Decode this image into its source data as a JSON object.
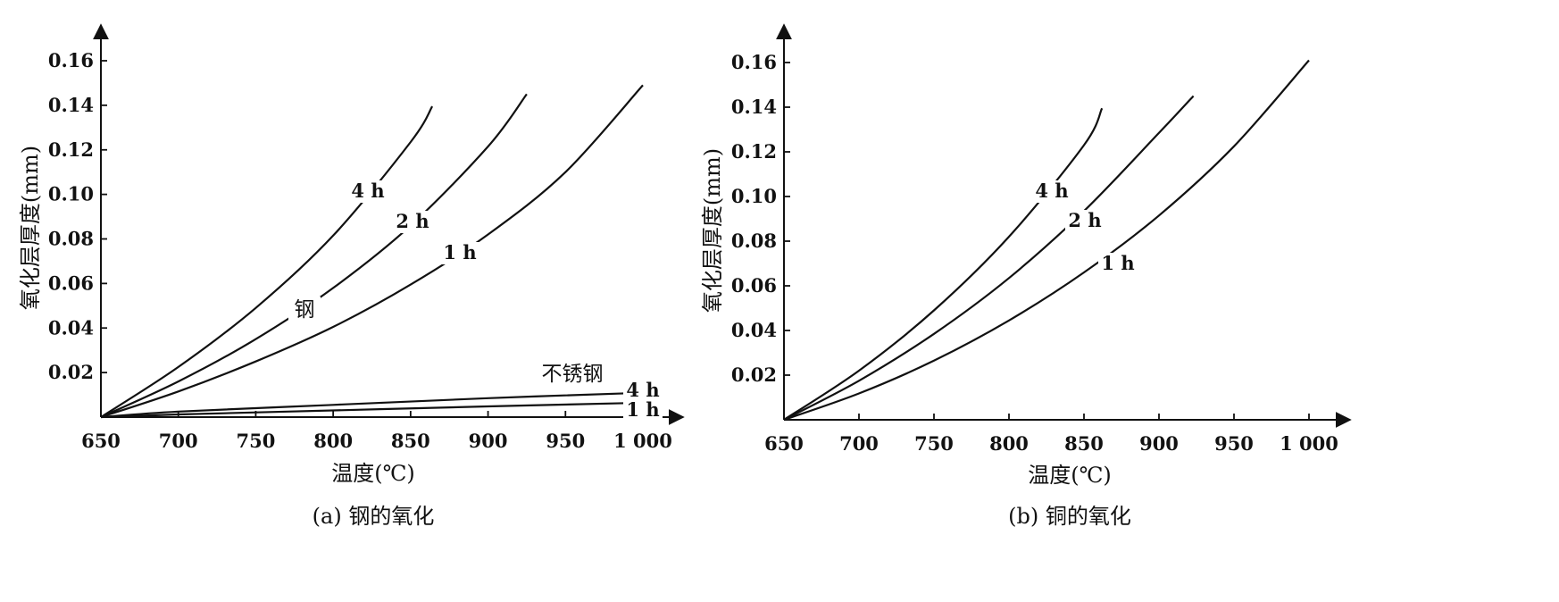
{
  "chart_data": [
    {
      "type": "line",
      "caption": "(a) 钢的氧化",
      "xlabel": "温度(℃)",
      "ylabel": "氧化层厚度(mm)",
      "xlim": [
        650,
        1000
      ],
      "ylim": [
        0,
        0.16
      ],
      "x_ticks": [
        650,
        700,
        750,
        800,
        850,
        900,
        950,
        1000
      ],
      "x_tick_labels": [
        "650",
        "700",
        "750",
        "800",
        "850",
        "900",
        "950",
        "1 000"
      ],
      "y_ticks": [
        0.02,
        0.04,
        0.06,
        0.08,
        0.1,
        0.12,
        0.14,
        0.16
      ],
      "y_tick_labels": [
        "0.02",
        "0.04",
        "0.06",
        "0.08",
        "0.10",
        "0.12",
        "0.14",
        "0.16"
      ],
      "grid": false,
      "annotations": [
        "钢",
        "不锈钢"
      ],
      "series": [
        {
          "name": "4 h",
          "group": "钢",
          "x": [
            650,
            700,
            750,
            800,
            850,
            864
          ],
          "y": [
            0,
            0.0225,
            0.049,
            0.0815,
            0.1235,
            0.1395
          ]
        },
        {
          "name": "2 h",
          "group": "钢",
          "x": [
            650,
            700,
            750,
            800,
            850,
            900,
            925
          ],
          "y": [
            0,
            0.016,
            0.035,
            0.058,
            0.086,
            0.1215,
            0.145
          ]
        },
        {
          "name": "1 h",
          "group": "钢",
          "x": [
            650,
            700,
            750,
            800,
            850,
            900,
            950,
            1000
          ],
          "y": [
            0,
            0.0115,
            0.025,
            0.0405,
            0.0595,
            0.082,
            0.11,
            0.149
          ]
        },
        {
          "name": "4 h",
          "group": "不锈钢",
          "x": [
            650,
            700,
            800,
            900,
            990
          ],
          "y": [
            0,
            0.0025,
            0.0055,
            0.0085,
            0.0107
          ]
        },
        {
          "name": "1 h",
          "group": "不锈钢",
          "x": [
            650,
            700,
            800,
            900,
            990
          ],
          "y": [
            0,
            0.0012,
            0.003,
            0.0048,
            0.0063
          ]
        }
      ]
    },
    {
      "type": "line",
      "caption": "(b) 铜的氧化",
      "xlabel": "温度(℃)",
      "ylabel": "氧化层厚度(mm)",
      "xlim": [
        650,
        1000
      ],
      "ylim": [
        0,
        0.16
      ],
      "x_ticks": [
        650,
        700,
        750,
        800,
        850,
        900,
        950,
        1000
      ],
      "x_tick_labels": [
        "650",
        "700",
        "750",
        "800",
        "850",
        "900",
        "950",
        "1 000"
      ],
      "y_ticks": [
        0.02,
        0.04,
        0.06,
        0.08,
        0.1,
        0.12,
        0.14,
        0.16
      ],
      "y_tick_labels": [
        "0.02",
        "0.04",
        "0.06",
        "0.08",
        "0.10",
        "0.12",
        "0.14",
        "0.16"
      ],
      "grid": false,
      "annotations": [],
      "series": [
        {
          "name": "4 h",
          "x": [
            650,
            700,
            750,
            800,
            850,
            862
          ],
          "y": [
            0,
            0.022,
            0.049,
            0.082,
            0.123,
            0.1395
          ]
        },
        {
          "name": "2 h",
          "x": [
            650,
            700,
            750,
            800,
            850,
            900,
            923
          ],
          "y": [
            0,
            0.0175,
            0.0385,
            0.0635,
            0.0935,
            0.1285,
            0.145
          ]
        },
        {
          "name": "1 h",
          "x": [
            650,
            700,
            750,
            800,
            850,
            900,
            950,
            1000
          ],
          "y": [
            0,
            0.0118,
            0.0265,
            0.0445,
            0.066,
            0.0915,
            0.1225,
            0.161
          ]
        }
      ]
    }
  ]
}
